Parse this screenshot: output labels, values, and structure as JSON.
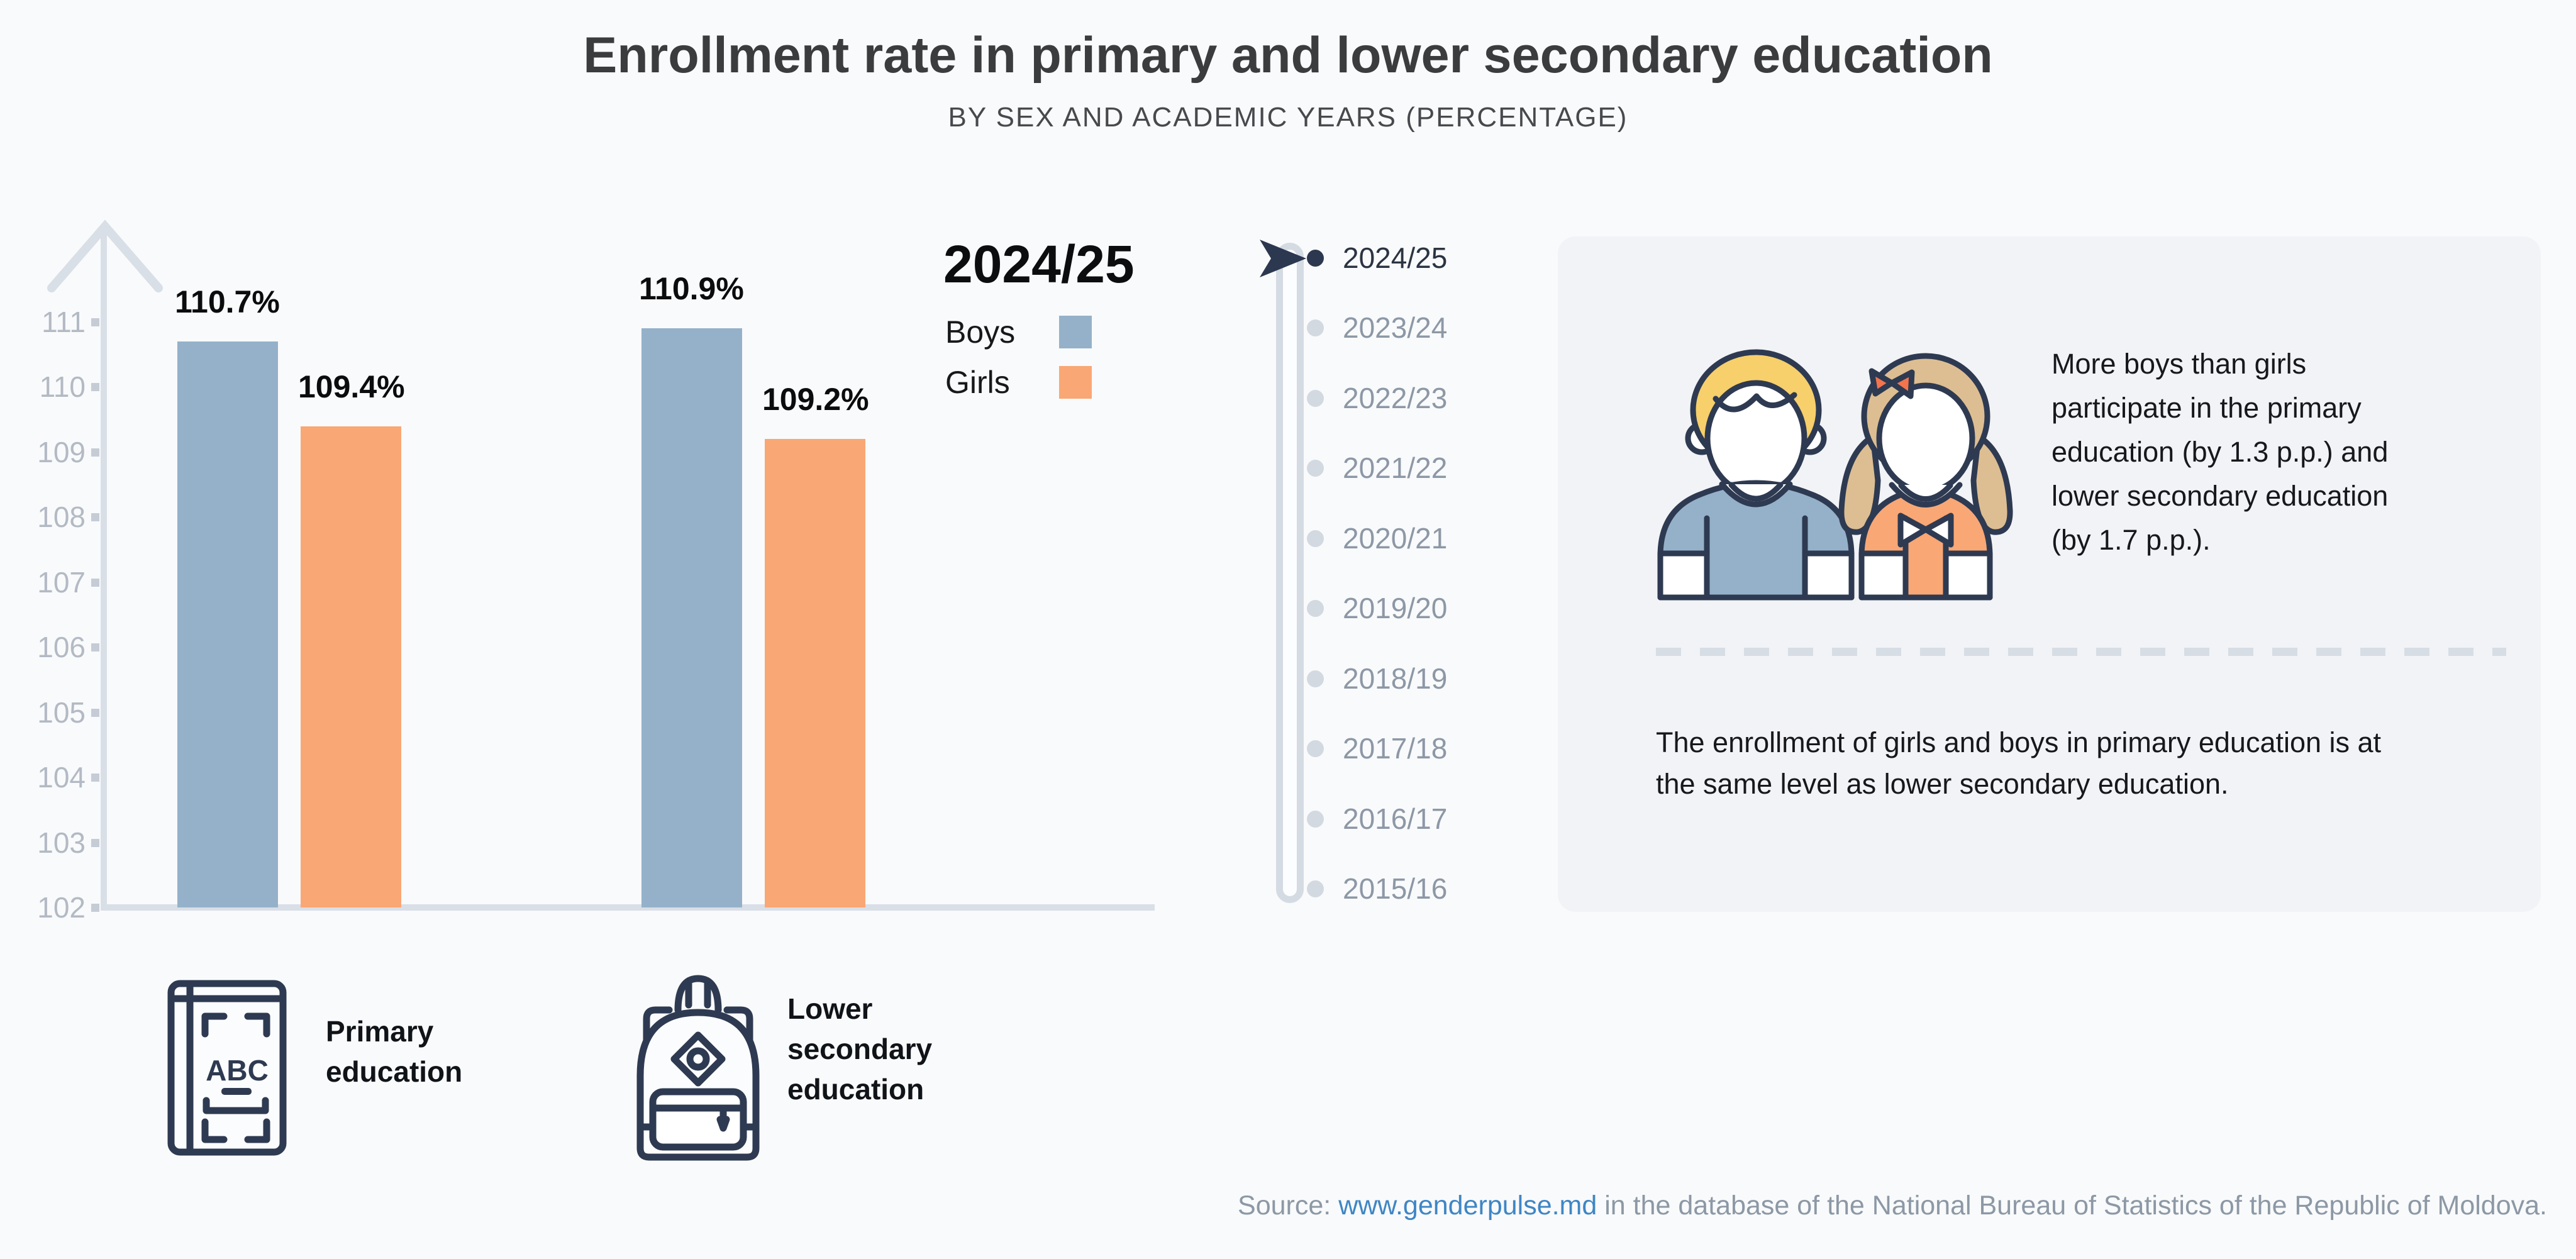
{
  "header": {
    "title": "Enrollment rate in primary and lower secondary education",
    "subtitle": "BY SEX AND ACADEMIC YEARS (PERCENTAGE)"
  },
  "chart_data": {
    "type": "bar",
    "title": "Enrollment rate in primary and lower secondary education",
    "subtitle": "BY SEX AND ACADEMIC YEARS (PERCENTAGE)",
    "unit": "percent",
    "categories": [
      "Primary education",
      "Lower secondary education"
    ],
    "series": [
      {
        "name": "Boys",
        "color": "#94b1c9",
        "values": [
          110.7,
          110.9
        ],
        "labels": [
          "110.7%",
          "110.9%"
        ]
      },
      {
        "name": "Girls",
        "color": "#f9a775",
        "values": [
          109.4,
          109.2
        ],
        "labels": [
          "109.4%",
          "109.2%"
        ]
      }
    ],
    "ylim": [
      102,
      111
    ],
    "yticks": [
      111,
      110,
      109,
      108,
      107,
      106,
      105,
      104,
      103,
      102
    ],
    "grid": false,
    "legend_position": "right"
  },
  "legend": {
    "current_year": "2024/25",
    "items": [
      {
        "label": "Boys",
        "color": "#94b1c9"
      },
      {
        "label": "Girls",
        "color": "#f9a775"
      }
    ]
  },
  "timeline": {
    "selected_year": "2024/25",
    "selected_index": 0,
    "years": [
      "2024/25",
      "2023/24",
      "2022/23",
      "2021/22",
      "2020/21",
      "2019/20",
      "2018/19",
      "2017/18",
      "2016/17",
      "2015/16"
    ]
  },
  "panel": {
    "highlight_text": "More boys than girls participate in the primary education (by 1.3 p.p.) and lower secondary education (by 1.7 p.p.).",
    "secondary_text": "The enrollment of girls and boys in primary education is at the same level as lower secondary education."
  },
  "categories": [
    {
      "icon": "abc-book-icon",
      "label": "Primary education"
    },
    {
      "icon": "backpack-icon",
      "label": "Lower secondary education"
    }
  ],
  "source": {
    "prefix": "Source: ",
    "link_text": "www.genderpulse.md",
    "suffix": " in the database of the National Bureau of Statistics of the Republic of Moldova."
  },
  "colors": {
    "boys": "#94b1c9",
    "girls": "#f9a775",
    "navy": "#2e3a51",
    "axis": "#d9dfe7",
    "page_bg": "#f9fafb",
    "panel_bg": "#f2f3f6",
    "link": "#3e86c5"
  }
}
